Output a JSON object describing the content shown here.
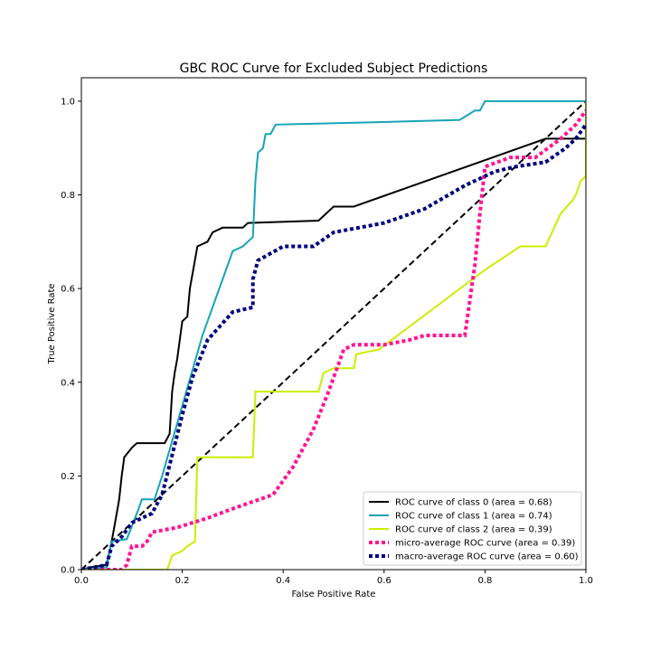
{
  "chart_data": {
    "type": "line",
    "title": "GBC ROC Curve for Excluded Subject Predictions",
    "xlabel": "False Positive Rate",
    "ylabel": "True Positive Rate",
    "xlim": [
      0.0,
      1.0
    ],
    "ylim": [
      0.0,
      1.05
    ],
    "x_ticks": [
      "0.0",
      "0.2",
      "0.4",
      "0.6",
      "0.8",
      "1.0"
    ],
    "y_ticks": [
      "0.0",
      "0.2",
      "0.4",
      "0.6",
      "0.8",
      "1.0"
    ],
    "grid": false,
    "legend_position": "lower-right",
    "reference_line": {
      "points": [
        [
          0,
          0
        ],
        [
          1,
          1
        ]
      ],
      "color": "#000000",
      "style": "dashed"
    },
    "series": [
      {
        "name": "ROC curve of class 0 (area = 0.68)",
        "color": "#000000",
        "style": "solid",
        "points": [
          [
            0,
            0
          ],
          [
            0.02,
            0.005
          ],
          [
            0.05,
            0.01
          ],
          [
            0.06,
            0.06
          ],
          [
            0.065,
            0.09
          ],
          [
            0.07,
            0.12
          ],
          [
            0.075,
            0.15
          ],
          [
            0.08,
            0.2
          ],
          [
            0.085,
            0.24
          ],
          [
            0.1,
            0.26
          ],
          [
            0.11,
            0.27
          ],
          [
            0.165,
            0.27
          ],
          [
            0.17,
            0.28
          ],
          [
            0.175,
            0.29
          ],
          [
            0.18,
            0.38
          ],
          [
            0.185,
            0.42
          ],
          [
            0.19,
            0.45
          ],
          [
            0.2,
            0.53
          ],
          [
            0.21,
            0.54
          ],
          [
            0.215,
            0.6
          ],
          [
            0.22,
            0.63
          ],
          [
            0.23,
            0.69
          ],
          [
            0.25,
            0.7
          ],
          [
            0.26,
            0.72
          ],
          [
            0.28,
            0.73
          ],
          [
            0.32,
            0.73
          ],
          [
            0.33,
            0.74
          ],
          [
            0.47,
            0.745
          ],
          [
            0.5,
            0.775
          ],
          [
            0.54,
            0.775
          ],
          [
            0.92,
            0.92
          ],
          [
            1.0,
            0.92
          ],
          [
            1.0,
            1.0
          ]
        ]
      },
      {
        "name": "ROC curve of class 1 (area = 0.74)",
        "color": "#17a3b8",
        "style": "solid",
        "points": [
          [
            0,
            0
          ],
          [
            0.05,
            0.005
          ],
          [
            0.06,
            0.06
          ],
          [
            0.09,
            0.065
          ],
          [
            0.11,
            0.12
          ],
          [
            0.12,
            0.15
          ],
          [
            0.145,
            0.15
          ],
          [
            0.16,
            0.2
          ],
          [
            0.2,
            0.35
          ],
          [
            0.24,
            0.5
          ],
          [
            0.3,
            0.68
          ],
          [
            0.32,
            0.69
          ],
          [
            0.33,
            0.7
          ],
          [
            0.34,
            0.71
          ],
          [
            0.345,
            0.83
          ],
          [
            0.35,
            0.89
          ],
          [
            0.36,
            0.9
          ],
          [
            0.365,
            0.93
          ],
          [
            0.375,
            0.93
          ],
          [
            0.385,
            0.95
          ],
          [
            0.58,
            0.955
          ],
          [
            0.75,
            0.96
          ],
          [
            0.78,
            0.98
          ],
          [
            0.79,
            0.98
          ],
          [
            0.8,
            1.0
          ],
          [
            1.0,
            1.0
          ]
        ]
      },
      {
        "name": "ROC curve of class 2 (area = 0.39)",
        "color": "#ccee00",
        "style": "solid",
        "points": [
          [
            0,
            0
          ],
          [
            0.17,
            0.0
          ],
          [
            0.18,
            0.03
          ],
          [
            0.2,
            0.04
          ],
          [
            0.21,
            0.05
          ],
          [
            0.225,
            0.06
          ],
          [
            0.23,
            0.24
          ],
          [
            0.34,
            0.24
          ],
          [
            0.345,
            0.38
          ],
          [
            0.47,
            0.38
          ],
          [
            0.48,
            0.42
          ],
          [
            0.5,
            0.43
          ],
          [
            0.54,
            0.43
          ],
          [
            0.545,
            0.46
          ],
          [
            0.59,
            0.47
          ],
          [
            0.8,
            0.64
          ],
          [
            0.87,
            0.69
          ],
          [
            0.92,
            0.69
          ],
          [
            0.95,
            0.76
          ],
          [
            0.975,
            0.79
          ],
          [
            0.98,
            0.8
          ],
          [
            0.99,
            0.83
          ],
          [
            1.0,
            0.84
          ],
          [
            1.0,
            1.0
          ]
        ]
      },
      {
        "name": "micro-average ROC curve (area = 0.39)",
        "color": "#ff1493",
        "style": "dotted",
        "points": [
          [
            0,
            0
          ],
          [
            0.08,
            0.0
          ],
          [
            0.09,
            0.01
          ],
          [
            0.1,
            0.05
          ],
          [
            0.12,
            0.05
          ],
          [
            0.13,
            0.06
          ],
          [
            0.14,
            0.08
          ],
          [
            0.19,
            0.09
          ],
          [
            0.25,
            0.11
          ],
          [
            0.3,
            0.13
          ],
          [
            0.38,
            0.16
          ],
          [
            0.42,
            0.22
          ],
          [
            0.46,
            0.3
          ],
          [
            0.49,
            0.38
          ],
          [
            0.52,
            0.47
          ],
          [
            0.54,
            0.48
          ],
          [
            0.6,
            0.48
          ],
          [
            0.65,
            0.49
          ],
          [
            0.68,
            0.5
          ],
          [
            0.76,
            0.5
          ],
          [
            0.78,
            0.65
          ],
          [
            0.79,
            0.76
          ],
          [
            0.8,
            0.86
          ],
          [
            0.85,
            0.88
          ],
          [
            0.9,
            0.88
          ],
          [
            0.95,
            0.92
          ],
          [
            0.98,
            0.95
          ],
          [
            1.0,
            0.98
          ]
        ]
      },
      {
        "name": "macro-average ROC curve (area = 0.60)",
        "color": "#000080",
        "style": "dotted",
        "points": [
          [
            0,
            0
          ],
          [
            0.05,
            0.01
          ],
          [
            0.06,
            0.05
          ],
          [
            0.08,
            0.07
          ],
          [
            0.1,
            0.1
          ],
          [
            0.14,
            0.12
          ],
          [
            0.16,
            0.16
          ],
          [
            0.2,
            0.33
          ],
          [
            0.22,
            0.41
          ],
          [
            0.25,
            0.49
          ],
          [
            0.3,
            0.55
          ],
          [
            0.34,
            0.56
          ],
          [
            0.34,
            0.62
          ],
          [
            0.35,
            0.66
          ],
          [
            0.4,
            0.69
          ],
          [
            0.46,
            0.69
          ],
          [
            0.5,
            0.72
          ],
          [
            0.55,
            0.73
          ],
          [
            0.6,
            0.74
          ],
          [
            0.68,
            0.77
          ],
          [
            0.76,
            0.82
          ],
          [
            0.82,
            0.85
          ],
          [
            0.86,
            0.86
          ],
          [
            0.92,
            0.87
          ],
          [
            0.96,
            0.9
          ],
          [
            0.98,
            0.92
          ],
          [
            1.0,
            0.95
          ]
        ]
      }
    ]
  }
}
